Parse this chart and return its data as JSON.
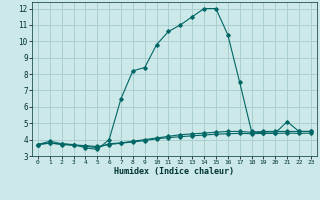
{
  "title": "",
  "xlabel": "Humidex (Indice chaleur)",
  "ylabel": "",
  "background_color": "#cce8e8",
  "grid_color": "#aacfcf",
  "line_color": "#006666",
  "xlim": [
    -0.5,
    23.5
  ],
  "ylim": [
    3,
    12.4
  ],
  "xticks": [
    0,
    1,
    2,
    3,
    4,
    5,
    6,
    7,
    8,
    9,
    10,
    11,
    12,
    13,
    14,
    15,
    16,
    17,
    18,
    19,
    20,
    21,
    22,
    23
  ],
  "yticks": [
    3,
    4,
    5,
    6,
    7,
    8,
    9,
    10,
    11,
    12
  ],
  "series": [
    {
      "x": [
        0,
        1,
        2,
        3,
        4,
        5,
        6,
        7,
        8,
        9,
        10,
        11,
        12,
        13,
        14,
        15,
        16,
        17,
        18,
        19,
        20,
        21,
        22,
        23
      ],
      "y": [
        3.7,
        3.9,
        3.75,
        3.7,
        3.5,
        3.4,
        4.0,
        6.5,
        8.2,
        8.4,
        9.8,
        10.6,
        11.0,
        11.5,
        12.0,
        12.0,
        10.4,
        7.5,
        4.5,
        4.4,
        4.4,
        5.1,
        4.5,
        4.5
      ]
    },
    {
      "x": [
        0,
        1,
        2,
        3,
        4,
        5,
        6,
        7,
        8,
        9,
        10,
        11,
        12,
        13,
        14,
        15,
        16,
        17,
        18,
        19,
        20,
        21,
        22,
        23
      ],
      "y": [
        3.7,
        3.8,
        3.7,
        3.65,
        3.6,
        3.5,
        3.75,
        3.8,
        3.9,
        4.0,
        4.1,
        4.2,
        4.3,
        4.35,
        4.4,
        4.45,
        4.5,
        4.5,
        4.45,
        4.5,
        4.5,
        4.5,
        4.5,
        4.5
      ]
    },
    {
      "x": [
        0,
        1,
        2,
        3,
        4,
        5,
        6,
        7,
        8,
        9,
        10,
        11,
        12,
        13,
        14,
        15,
        16,
        17,
        18,
        19,
        20,
        21,
        22,
        23
      ],
      "y": [
        3.7,
        3.78,
        3.73,
        3.68,
        3.63,
        3.58,
        3.7,
        3.78,
        3.86,
        3.94,
        4.05,
        4.12,
        4.18,
        4.23,
        4.28,
        4.33,
        4.36,
        4.38,
        4.36,
        4.38,
        4.38,
        4.4,
        4.38,
        4.4
      ]
    }
  ]
}
